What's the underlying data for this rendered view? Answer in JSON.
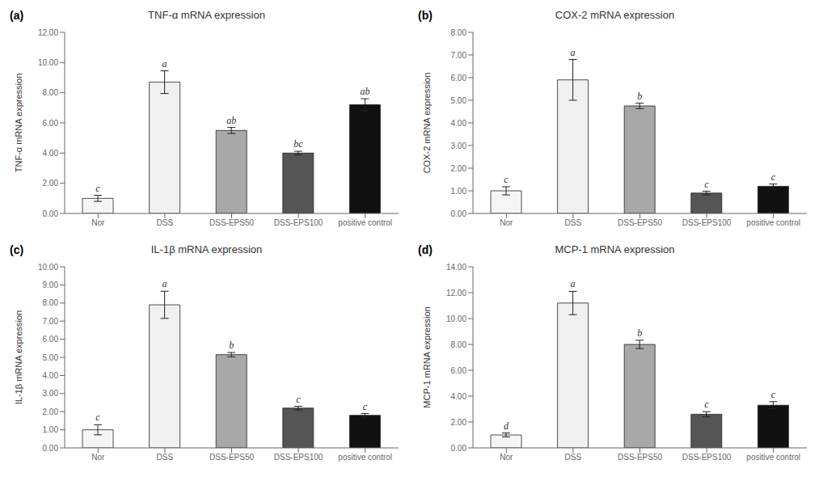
{
  "chart_data": [
    {
      "type": "bar",
      "title": "TNF-α mRNA expression",
      "panel_label": "(a)",
      "ylabel": "TNF-α mRNA expression",
      "categories": [
        "Nor",
        "DSS",
        "DSS-EPS50",
        "DSS-EPS100",
        "positive control"
      ],
      "values": [
        1.0,
        8.7,
        5.5,
        4.0,
        7.2
      ],
      "errors": [
        0.2,
        0.75,
        0.2,
        0.12,
        0.4
      ],
      "annotations": [
        "c",
        "a",
        "ab",
        "bc",
        "ab"
      ],
      "colors": [
        "#f5f5f5",
        "#f0f0f0",
        "#a8a8a8",
        "#555555",
        "#111111"
      ],
      "ylim": [
        0,
        12.0
      ],
      "yticks": [
        {
          "value": 0,
          "label": "0.00"
        },
        {
          "value": 2,
          "label": "2.00"
        },
        {
          "value": 4,
          "label": "4.00"
        },
        {
          "value": 6,
          "label": "6.00"
        },
        {
          "value": 8,
          "label": "8.00"
        },
        {
          "value": 10,
          "label": "10.00"
        },
        {
          "value": 12,
          "label": "12.00"
        }
      ],
      "grid": false
    },
    {
      "type": "bar",
      "title": "COX-2 mRNA expression",
      "panel_label": "(b)",
      "ylabel": "COX-2 mRNA expression",
      "categories": [
        "Nor",
        "DSS",
        "DSS-EPS50",
        "DSS-EPS100",
        "positive control"
      ],
      "values": [
        1.0,
        5.9,
        4.75,
        0.9,
        1.2
      ],
      "errors": [
        0.18,
        0.9,
        0.12,
        0.08,
        0.1
      ],
      "annotations": [
        "c",
        "a",
        "b",
        "c",
        "c"
      ],
      "colors": [
        "#f5f5f5",
        "#f0f0f0",
        "#a8a8a8",
        "#555555",
        "#111111"
      ],
      "ylim": [
        0,
        8.0
      ],
      "yticks": [
        {
          "value": 0,
          "label": "0.00"
        },
        {
          "value": 1,
          "label": "1.00"
        },
        {
          "value": 2,
          "label": "2.00"
        },
        {
          "value": 3,
          "label": "3.00"
        },
        {
          "value": 4,
          "label": "4.00"
        },
        {
          "value": 5,
          "label": "5.00"
        },
        {
          "value": 6,
          "label": "6.00"
        },
        {
          "value": 7,
          "label": "7.00"
        },
        {
          "value": 8,
          "label": "8.00"
        }
      ],
      "grid": false
    },
    {
      "type": "bar",
      "title": "IL-1β mRNA expression",
      "panel_label": "(c)",
      "ylabel": "IL-1β mRNA expression",
      "categories": [
        "Nor",
        "DSS",
        "DSS-EPS50",
        "DSS-EPS100",
        "positive control"
      ],
      "values": [
        1.0,
        7.9,
        5.15,
        2.2,
        1.8
      ],
      "errors": [
        0.28,
        0.75,
        0.12,
        0.1,
        0.1
      ],
      "annotations": [
        "c",
        "a",
        "b",
        "c",
        "c"
      ],
      "colors": [
        "#f5f5f5",
        "#f0f0f0",
        "#a8a8a8",
        "#555555",
        "#111111"
      ],
      "ylim": [
        0,
        10.0
      ],
      "yticks": [
        {
          "value": 0,
          "label": "0.00"
        },
        {
          "value": 1,
          "label": "1.00"
        },
        {
          "value": 2,
          "label": "2.00"
        },
        {
          "value": 3,
          "label": "3.00"
        },
        {
          "value": 4,
          "label": "4.00"
        },
        {
          "value": 5,
          "label": "5.00"
        },
        {
          "value": 6,
          "label": "6.00"
        },
        {
          "value": 7,
          "label": "7.00"
        },
        {
          "value": 8,
          "label": "8.00"
        },
        {
          "value": 9,
          "label": "9.00"
        },
        {
          "value": 10,
          "label": "10.00"
        }
      ],
      "grid": false
    },
    {
      "type": "bar",
      "title": "MCP-1 mRNA expression",
      "panel_label": "(d)",
      "ylabel": "MCP-1 mRNA expression",
      "categories": [
        "Nor",
        "DSS",
        "DSS-EPS50",
        "DSS-EPS100",
        "positive control"
      ],
      "values": [
        1.0,
        11.2,
        8.0,
        2.6,
        3.3
      ],
      "errors": [
        0.15,
        0.9,
        0.32,
        0.2,
        0.28
      ],
      "annotations": [
        "d",
        "a",
        "b",
        "c",
        "c"
      ],
      "colors": [
        "#f5f5f5",
        "#f0f0f0",
        "#a8a8a8",
        "#555555",
        "#111111"
      ],
      "ylim": [
        0,
        14.0
      ],
      "yticks": [
        {
          "value": 0,
          "label": "0.00"
        },
        {
          "value": 2,
          "label": "2.00"
        },
        {
          "value": 4,
          "label": "4.00"
        },
        {
          "value": 6,
          "label": "6.00"
        },
        {
          "value": 8,
          "label": "8.00"
        },
        {
          "value": 10,
          "label": "10.00"
        },
        {
          "value": 12,
          "label": "12.00"
        },
        {
          "value": 14,
          "label": "14.00"
        }
      ],
      "grid": false
    }
  ]
}
